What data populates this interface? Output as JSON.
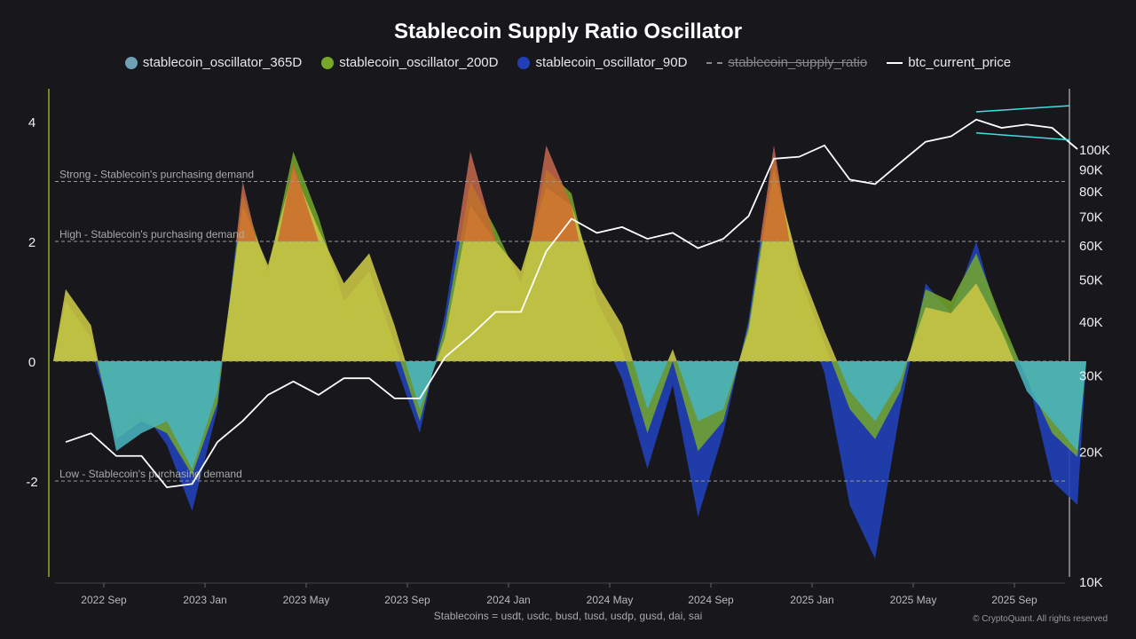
{
  "chart_data": {
    "type": "area",
    "title": "Stablecoin Supply Ratio Oscillator",
    "footnote": "Stablecoins = usdt, usdc, busd, tusd, usdp, gusd, dai, sai",
    "copyright": "© CryptoQuant. All rights reserved",
    "legend": [
      {
        "name": "stablecoin_oscillator_365D",
        "color": "#6fa0b4",
        "marker": "dot"
      },
      {
        "name": "stablecoin_oscillator_200D",
        "color": "#76a82a",
        "marker": "dot"
      },
      {
        "name": "stablecoin_oscillator_90D",
        "color": "#2140b8",
        "marker": "dot"
      },
      {
        "name": "stablecoin_supply_ratio",
        "color": "#888888",
        "marker": "dash",
        "hidden": true
      },
      {
        "name": "btc_current_price",
        "color": "#ffffff",
        "marker": "line"
      }
    ],
    "legend_position": "top",
    "x_ticks": [
      "2022 Sep",
      "2023 Jan",
      "2023 May",
      "2023 Sep",
      "2024 Jan",
      "2024 May",
      "2024 Sep",
      "2025 Jan",
      "2025 May",
      "2025 Sep"
    ],
    "x": [
      "2022-07",
      "2022-08",
      "2022-09",
      "2022-10",
      "2022-11",
      "2022-12",
      "2023-01",
      "2023-02",
      "2023-03",
      "2023-04",
      "2023-05",
      "2023-06",
      "2023-07",
      "2023-08",
      "2023-09",
      "2023-10",
      "2023-11",
      "2023-12",
      "2024-01",
      "2024-02",
      "2024-03",
      "2024-04",
      "2024-05",
      "2024-06",
      "2024-07",
      "2024-08",
      "2024-09",
      "2024-10",
      "2024-11",
      "2024-12",
      "2025-01",
      "2025-02",
      "2025-03",
      "2025-04",
      "2025-05",
      "2025-06",
      "2025-07",
      "2025-08",
      "2025-09",
      "2025-10",
      "2025-11"
    ],
    "y_left": {
      "ticks": [
        "-2",
        "0",
        "2",
        "4"
      ],
      "range": [
        -3.7,
        4.5
      ]
    },
    "y_right": {
      "scale": "log",
      "ticks": [
        "10K",
        "20K",
        "30K",
        "40K",
        "50K",
        "60K",
        "70K",
        "80K",
        "90K",
        "100K"
      ],
      "range": [
        10000,
        135000
      ]
    },
    "thresholds": [
      {
        "label": "Strong - Stablecoin's purchasing demand",
        "value": 3
      },
      {
        "label": "High - Stablecoin's purchasing demand",
        "value": 2
      },
      {
        "label": "",
        "value": 0
      },
      {
        "label": "Low - Stablecoin's purchasing demand",
        "value": -2
      }
    ],
    "series": [
      {
        "name": "stablecoin_oscillator_365D",
        "values": [
          1.2,
          0.6,
          -1.5,
          -1.2,
          -1.0,
          -1.8,
          -0.5,
          2.6,
          1.6,
          3.2,
          2.2,
          1.3,
          1.8,
          0.6,
          -0.8,
          0.4,
          2.6,
          2.0,
          1.5,
          2.9,
          2.6,
          1.3,
          0.6,
          -0.8,
          0.2,
          -1.0,
          -0.8,
          0.5,
          3.2,
          1.6,
          0.5,
          -0.5,
          -1.0,
          -0.3,
          0.9,
          0.8,
          1.3,
          0.5,
          -0.5,
          -1.0,
          -1.5
        ]
      },
      {
        "name": "stablecoin_oscillator_200D",
        "values": [
          1.0,
          0.4,
          -1.3,
          -1.0,
          -1.2,
          -1.9,
          -0.7,
          2.8,
          1.5,
          3.5,
          2.4,
          1.0,
          1.5,
          0.3,
          -1.0,
          0.6,
          3.0,
          2.2,
          1.3,
          3.2,
          2.8,
          1.0,
          0.2,
          -1.2,
          0.0,
          -1.5,
          -1.0,
          0.6,
          3.4,
          1.4,
          0.3,
          -0.8,
          -1.3,
          -0.5,
          1.2,
          1.0,
          1.8,
          0.7,
          -0.3,
          -1.2,
          -1.6
        ]
      },
      {
        "name": "stablecoin_oscillator_90D",
        "values": [
          0.8,
          0.2,
          -1.2,
          -0.8,
          -1.4,
          -2.5,
          -0.8,
          3.0,
          1.2,
          3.3,
          2.0,
          0.6,
          1.2,
          0.0,
          -1.2,
          0.8,
          3.5,
          2.0,
          1.0,
          3.6,
          2.6,
          0.6,
          -0.3,
          -1.8,
          -0.4,
          -2.6,
          -1.2,
          0.7,
          3.6,
          1.0,
          -0.2,
          -2.4,
          -3.3,
          -0.8,
          1.3,
          0.8,
          2.0,
          0.5,
          -0.2,
          -2.0,
          -2.4
        ]
      },
      {
        "name": "btc_current_price",
        "axis": "right",
        "values": [
          21000,
          22000,
          19500,
          19500,
          16500,
          16800,
          21000,
          23500,
          27000,
          29000,
          27000,
          29500,
          29500,
          26500,
          26500,
          33000,
          37000,
          42000,
          42000,
          58000,
          69000,
          64000,
          66000,
          62000,
          64000,
          59000,
          62000,
          70000,
          95000,
          96000,
          102000,
          85000,
          83000,
          93000,
          104000,
          107000,
          117000,
          112000,
          114000,
          112000,
          100000
        ]
      }
    ],
    "annotations": [
      {
        "type": "trendline",
        "color": "#3fe0e0",
        "from": [
          "2025-07",
          122000
        ],
        "to": [
          "2025-11",
          126000
        ]
      },
      {
        "type": "trendline",
        "color": "#3fe0e0",
        "from": [
          "2025-07",
          109000
        ],
        "to": [
          "2025-11",
          105000
        ]
      }
    ],
    "colors": {
      "positive": "#d9cc2e",
      "above_high": "#d0642a",
      "negative": "#3fb8c0"
    },
    "grid": false
  }
}
